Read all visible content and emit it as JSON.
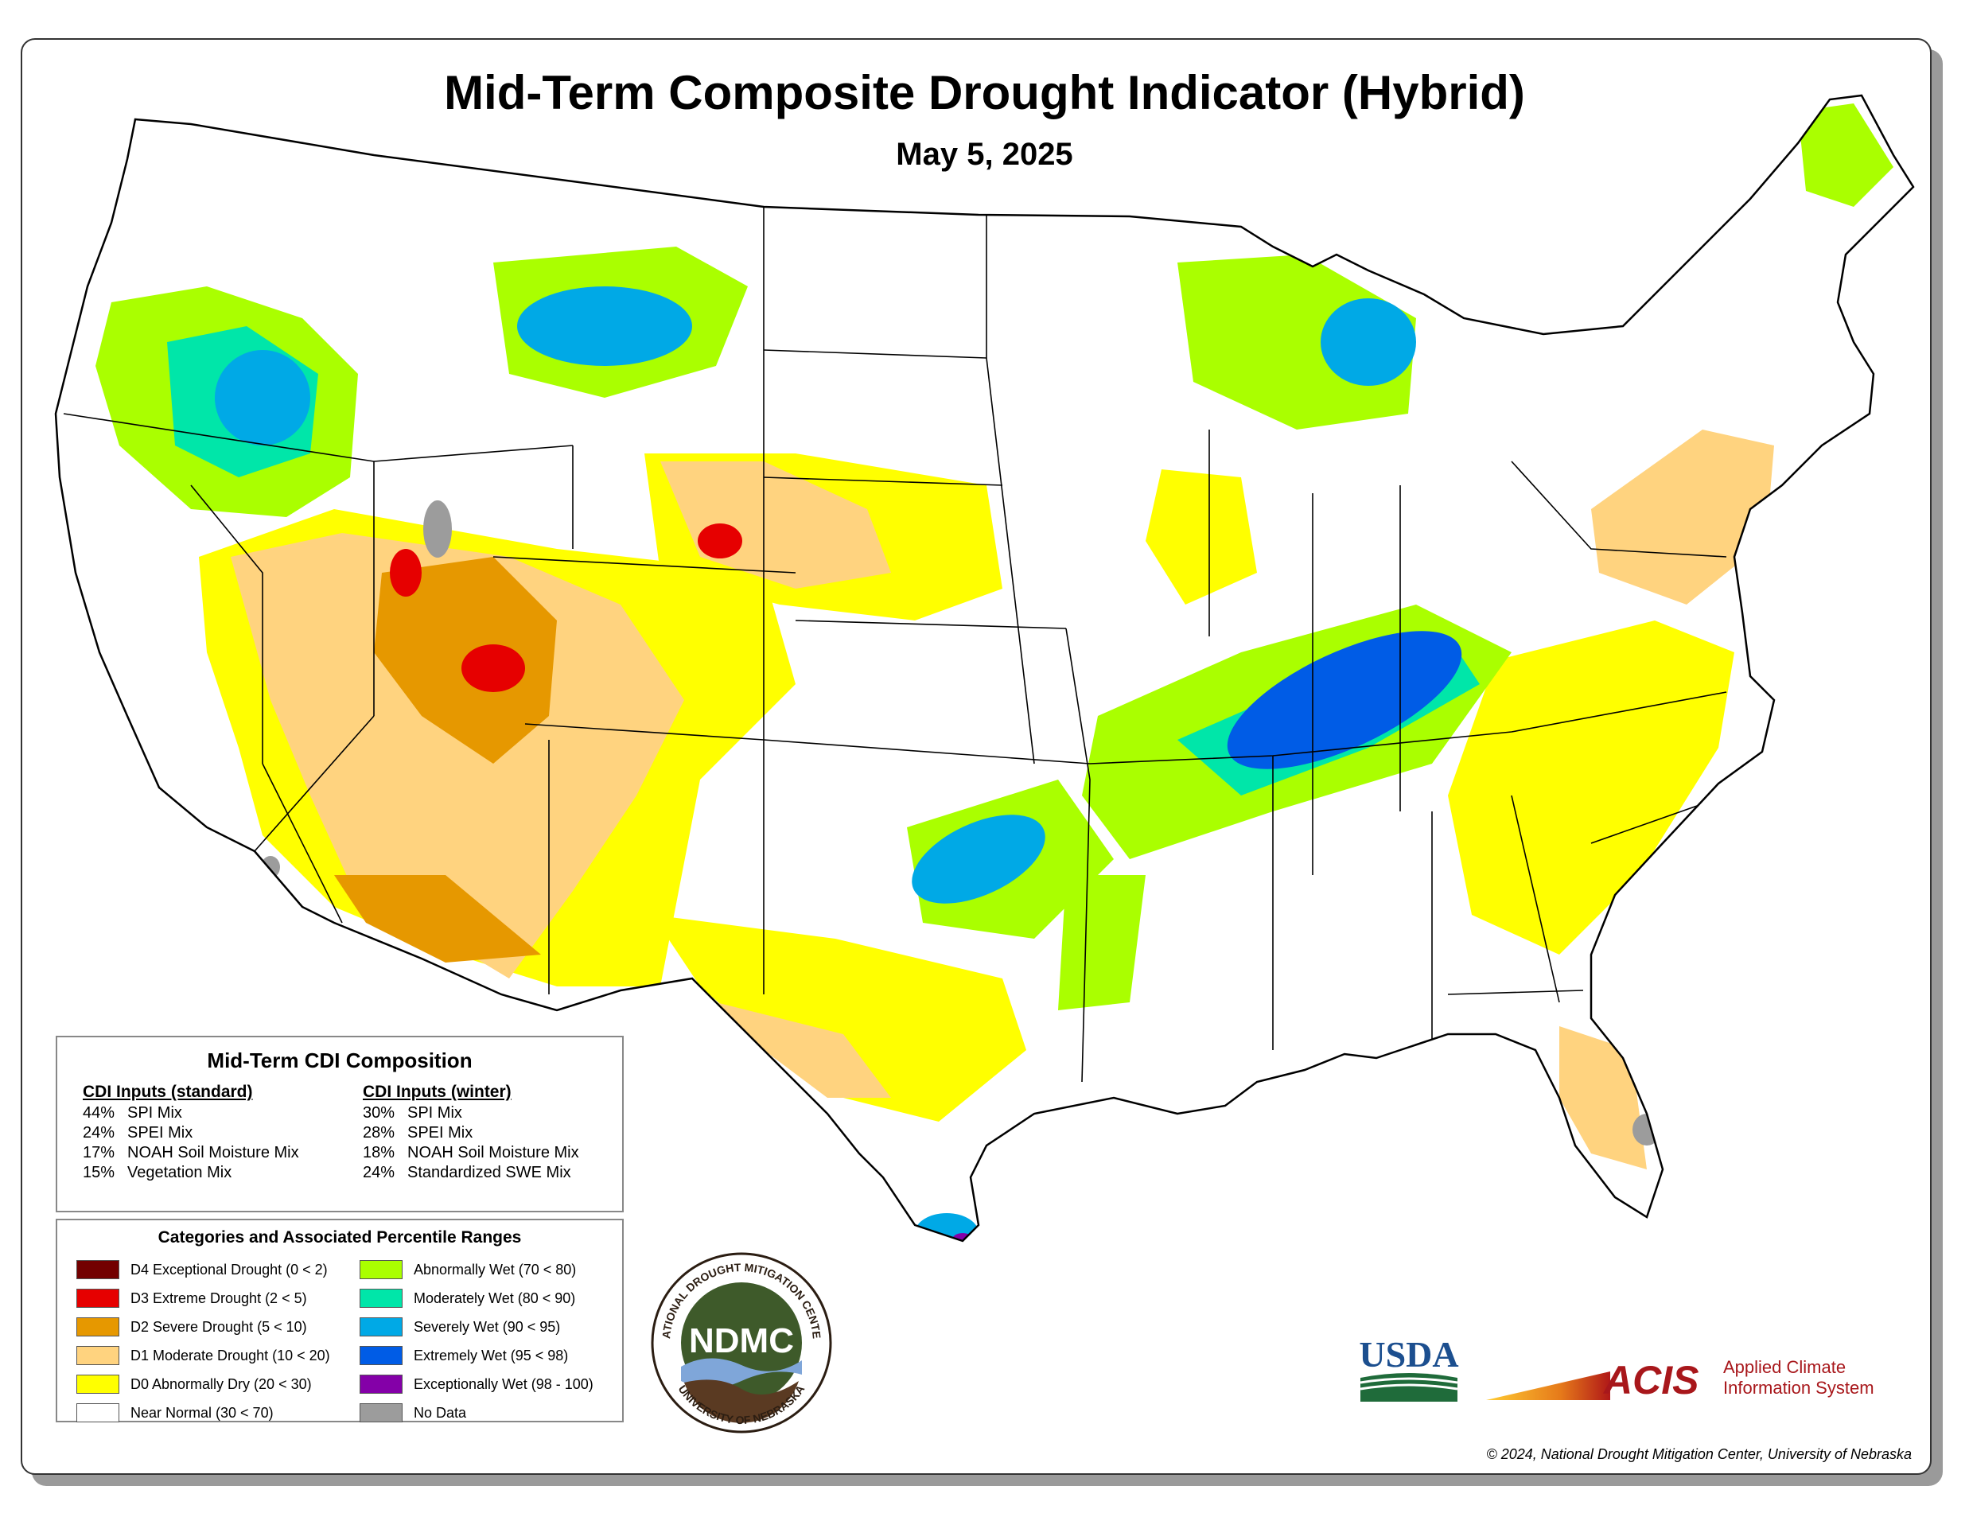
{
  "title": "Mid-Term Composite Drought Indicator (Hybrid)",
  "date": "May 5, 2025",
  "composition": {
    "heading": "Mid-Term CDI Composition",
    "standard": {
      "header": "CDI Inputs (standard)",
      "items": [
        {
          "pct": "44%",
          "name": "SPI Mix"
        },
        {
          "pct": "24%",
          "name": "SPEI Mix"
        },
        {
          "pct": "17%",
          "name": "NOAH Soil Moisture Mix"
        },
        {
          "pct": "15%",
          "name": "Vegetation Mix"
        }
      ]
    },
    "winter": {
      "header": "CDI Inputs (winter)",
      "items": [
        {
          "pct": "30%",
          "name": "SPI Mix"
        },
        {
          "pct": "28%",
          "name": "SPEI Mix"
        },
        {
          "pct": "18%",
          "name": "NOAH Soil Moisture Mix"
        },
        {
          "pct": "24%",
          "name": "Standardized SWE Mix"
        }
      ]
    }
  },
  "categories": {
    "heading": "Categories and Associated Percentile Ranges",
    "dry": [
      {
        "label": "D4 Exceptional Drought (0 < 2)",
        "color": "#730000"
      },
      {
        "label": "D3 Extreme Drought (2 < 5)",
        "color": "#e60000"
      },
      {
        "label": "D2 Severe Drought (5 < 10)",
        "color": "#e69800"
      },
      {
        "label": "D1 Moderate Drought (10 < 20)",
        "color": "#ffd37f"
      },
      {
        "label": "D0 Abnormally Dry (20 < 30)",
        "color": "#ffff00"
      },
      {
        "label": "Near Normal (30 < 70)",
        "color": "#ffffff"
      }
    ],
    "wet": [
      {
        "label": "Abnormally Wet (70 < 80)",
        "color": "#aaff00"
      },
      {
        "label": "Moderately Wet (80 < 90)",
        "color": "#00e6a9"
      },
      {
        "label": "Severely Wet (90 < 95)",
        "color": "#00a9e6"
      },
      {
        "label": "Extremely Wet (95 < 98)",
        "color": "#005ce6"
      },
      {
        "label": "Exceptionally Wet (98 - 100)",
        "color": "#8400a8"
      },
      {
        "label": "No Data",
        "color": "#9c9c9c"
      }
    ]
  },
  "logos": {
    "ndmc": {
      "center": "NDMC",
      "top_text": "NATIONAL DROUGHT MITIGATION CENTER",
      "bottom_text": "UNIVERSITY OF NEBRASKA"
    },
    "usda": "USDA",
    "acis": {
      "mark": "ACIS",
      "line1": "Applied Climate",
      "line2": "Information System"
    }
  },
  "credit": "© 2024, National Drought Mitigation Center, University of Nebraska",
  "map_colors": {
    "border": "#000000",
    "d0": "#ffff00",
    "d1": "#ffd37f",
    "d2": "#e69800",
    "d3": "#e60000",
    "w0": "#aaff00",
    "w1": "#00e6a9",
    "w2": "#00a9e6",
    "w3": "#005ce6",
    "w4": "#8400a8",
    "nodata": "#9c9c9c"
  }
}
